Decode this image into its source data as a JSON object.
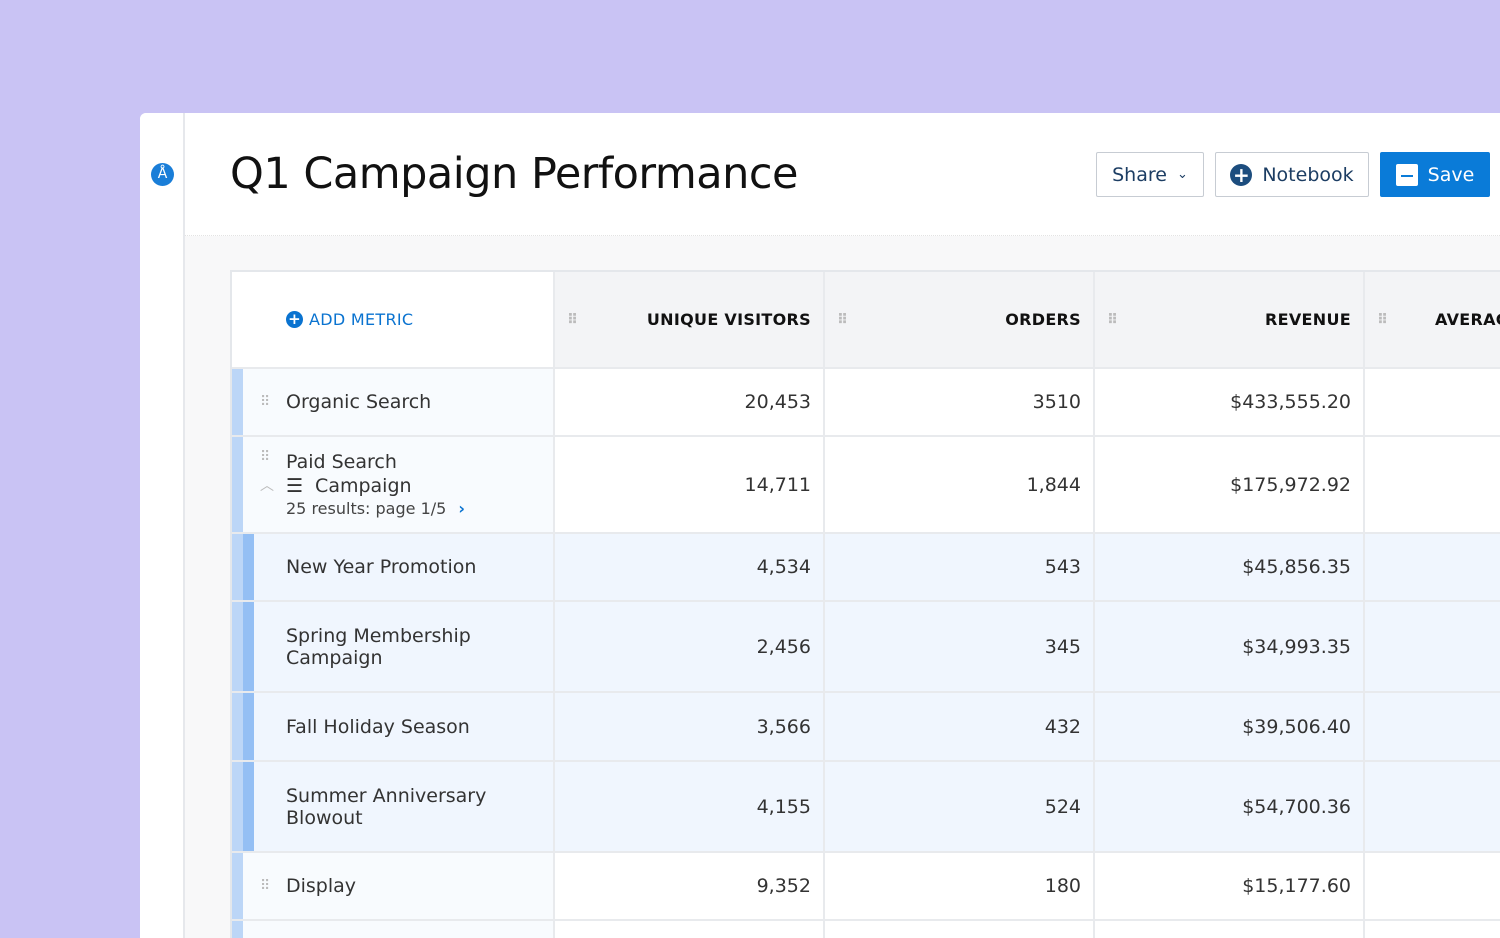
{
  "header": {
    "title": "Q1 Campaign Performance",
    "share": "Share",
    "notebook": "Notebook",
    "save": "Save"
  },
  "table": {
    "add_metric": "ADD METRIC",
    "columns": [
      "UNIQUE VISITORS",
      "ORDERS",
      "REVENUE",
      "AVERAG"
    ],
    "rows": [
      {
        "label": "Organic Search",
        "visitors": "20,453",
        "orders": "3510",
        "revenue": "$433,555.20"
      },
      {
        "label": "Paid Search",
        "group": "Campaign",
        "pager": "25 results: page 1/5",
        "visitors": "14,711",
        "orders": "1,844",
        "revenue": "$175,972.92"
      },
      {
        "label": "New Year Promotion",
        "visitors": "4,534",
        "orders": "543",
        "revenue": "$45,856.35"
      },
      {
        "label": "Spring Membership Campaign",
        "visitors": "2,456",
        "orders": "345",
        "revenue": "$34,993.35"
      },
      {
        "label": "Fall Holiday Season",
        "visitors": "3,566",
        "orders": "432",
        "revenue": "$39,506.40"
      },
      {
        "label": "Summer Anniversary Blowout",
        "visitors": "4,155",
        "orders": "524",
        "revenue": "$54,700.36"
      },
      {
        "label": "Display",
        "visitors": "9,352",
        "orders": "180",
        "revenue": "$15,177.60"
      }
    ]
  }
}
